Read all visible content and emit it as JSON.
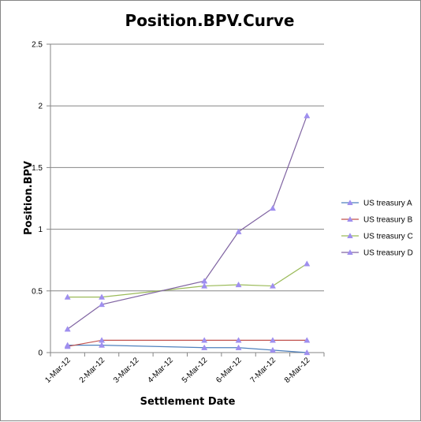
{
  "chart_data": {
    "type": "line",
    "title": "Position.BPV.Curve",
    "xlabel": "Settlement Date",
    "ylabel": "Position.BPV",
    "categories": [
      "1-Mar-12",
      "2-Mar-12",
      "3-Mar-12",
      "4-Mar-12",
      "5-Mar-12",
      "6-Mar-12",
      "7-Mar-12",
      "8-Mar-12"
    ],
    "yticks": [
      "0",
      "0.5",
      "1",
      "1.5",
      "2",
      "2.5"
    ],
    "ylim": [
      0,
      2.5
    ],
    "grid": "horizontal major gridlines",
    "legend_position": "right",
    "series": [
      {
        "name": "US treasury A",
        "color": "#4F81BD",
        "points": [
          [
            "1-Mar-12",
            0.06
          ],
          [
            "2-Mar-12",
            0.06
          ],
          [
            "5-Mar-12",
            0.04
          ],
          [
            "6-Mar-12",
            0.04
          ],
          [
            "7-Mar-12",
            0.02
          ],
          [
            "8-Mar-12",
            0.0
          ]
        ]
      },
      {
        "name": "US treasury B",
        "color": "#C0504D",
        "points": [
          [
            "1-Mar-12",
            0.05
          ],
          [
            "2-Mar-12",
            0.1
          ],
          [
            "5-Mar-12",
            0.1
          ],
          [
            "6-Mar-12",
            0.1
          ],
          [
            "7-Mar-12",
            0.1
          ],
          [
            "8-Mar-12",
            0.1
          ]
        ]
      },
      {
        "name": "US treasury C",
        "color": "#9BBB59",
        "points": [
          [
            "1-Mar-12",
            0.45
          ],
          [
            "2-Mar-12",
            0.45
          ],
          [
            "5-Mar-12",
            0.54
          ],
          [
            "6-Mar-12",
            0.55
          ],
          [
            "7-Mar-12",
            0.54
          ],
          [
            "8-Mar-12",
            0.72
          ]
        ]
      },
      {
        "name": "US treasury D",
        "color": "#8064A2",
        "points": [
          [
            "1-Mar-12",
            0.19
          ],
          [
            "2-Mar-12",
            0.39
          ],
          [
            "5-Mar-12",
            0.58
          ],
          [
            "6-Mar-12",
            0.98
          ],
          [
            "7-Mar-12",
            1.17
          ],
          [
            "8-Mar-12",
            1.92
          ]
        ]
      }
    ],
    "marker_color": "#9F8FEF",
    "gridline_color": "#868686"
  }
}
